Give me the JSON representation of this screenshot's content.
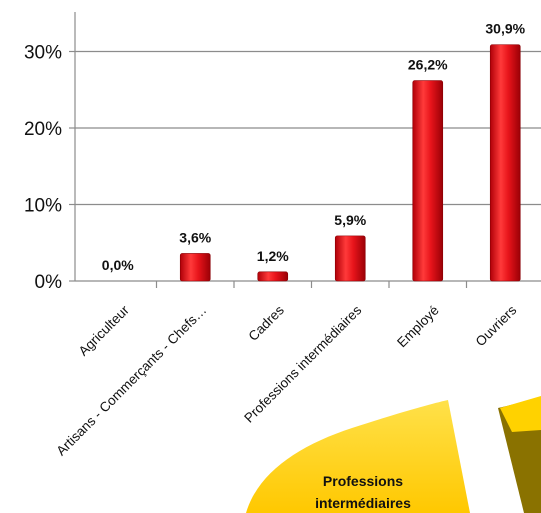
{
  "chart_data": {
    "type": "bar",
    "categories": [
      "Agriculteur",
      "Artisans - Commerçants - Chefs…",
      "Cadres",
      "Professions intermédiaires",
      "Employé",
      "Ouvriers"
    ],
    "series": [
      {
        "values": [
          0.0,
          3.6,
          1.2,
          5.9,
          26.2,
          30.9
        ],
        "labels": [
          "0,0%",
          "3,6%",
          "1,2%",
          "5,9%",
          "26,2%",
          "30,9%"
        ],
        "color": "#e8141b"
      }
    ],
    "yticks": [
      {
        "value": 0,
        "label": "0%"
      },
      {
        "value": 10,
        "label": "10%"
      },
      {
        "value": 20,
        "label": "20%"
      },
      {
        "value": 30,
        "label": "30%"
      }
    ],
    "ylim": [
      0,
      35
    ],
    "grid": true,
    "title": "",
    "xlabel": "",
    "ylabel": ""
  },
  "pie_fragment": {
    "label_line1": "Professions",
    "label_line2": "intermédiaires",
    "main_color": "#ffd200",
    "side_color": "#8a7200"
  }
}
